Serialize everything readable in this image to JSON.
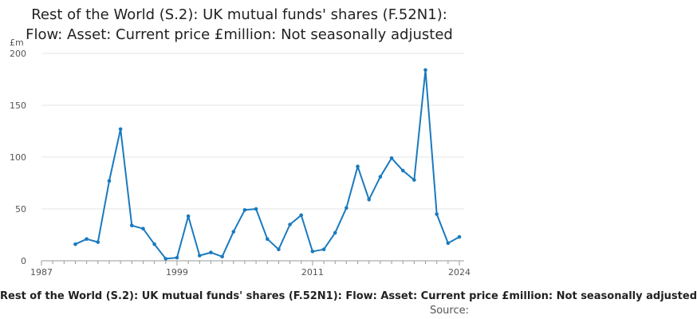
{
  "chart_data": {
    "type": "line",
    "title_lines": [
      "Rest of the World (S.2): UK mutual funds' shares (F.52N1):",
      "Flow: Asset: Current price £million: Not seasonally adjusted"
    ],
    "ylabel": "£m",
    "xlim": [
      1987,
      2024
    ],
    "ylim": [
      0,
      200
    ],
    "x_ticks": [
      1987,
      1999,
      2011,
      2024
    ],
    "x_tick_labels": [
      "1987",
      "1999",
      "2011",
      "2024"
    ],
    "y_ticks": [
      0,
      50,
      100,
      150,
      200
    ],
    "y_tick_labels": [
      "0",
      "50",
      "100",
      "150",
      "200"
    ],
    "grid": true,
    "series": [
      {
        "color": "#1a7abf",
        "x": [
          1990,
          1991,
          1992,
          1993,
          1994,
          1995,
          1996,
          1997,
          1998,
          1999,
          2000,
          2001,
          2002,
          2003,
          2004,
          2005,
          2006,
          2007,
          2008,
          2009,
          2010,
          2011,
          2012,
          2013,
          2014,
          2015,
          2016,
          2017,
          2018,
          2019,
          2020,
          2021,
          2022,
          2023,
          2024
        ],
        "values": [
          16,
          21,
          18,
          77,
          127,
          34,
          31,
          16,
          2,
          3,
          43,
          5,
          8,
          4,
          28,
          49,
          50,
          21,
          11,
          35,
          44,
          9,
          11,
          27,
          51,
          91,
          59,
          81,
          99,
          87,
          78,
          184,
          45,
          17,
          23
        ]
      }
    ],
    "footer_title": "Rest of the World (S.2): UK mutual funds' shares (F.52N1): Flow: Asset: Current price £million: Not seasonally adjusted",
    "source_label": "Source:"
  }
}
